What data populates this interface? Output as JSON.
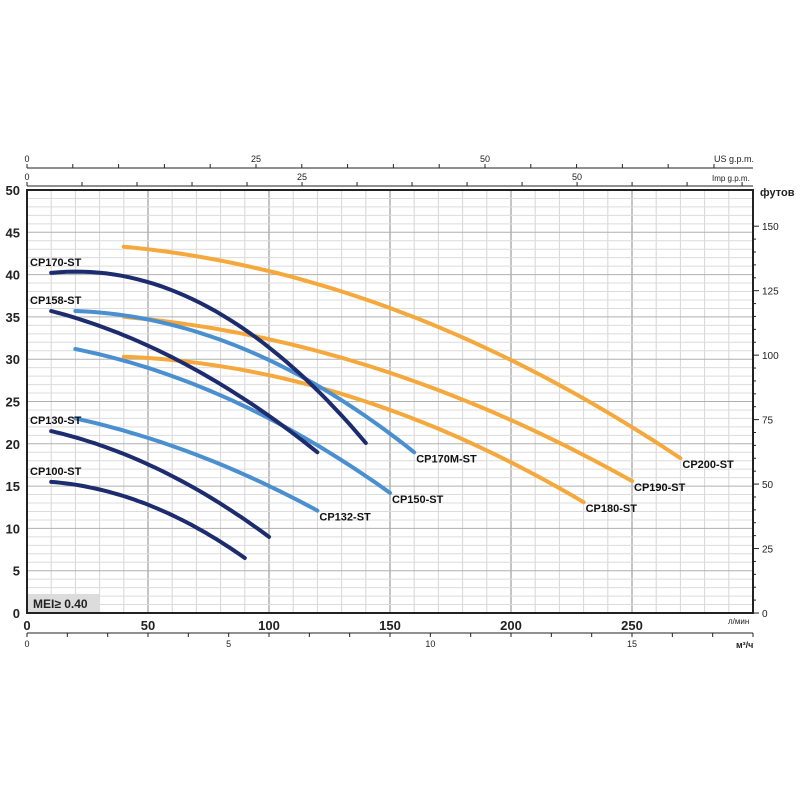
{
  "chart_data": {
    "type": "line",
    "xlabel": "л/мин",
    "ylabel": "",
    "y2label": "футов",
    "top_axis_1_label": "US g.p.m.",
    "top_axis_2_label": "Imp g.p.m.",
    "bottom_axis_2_label": "м³/ч",
    "xlim": [
      0,
      300
    ],
    "ylim": [
      0,
      50
    ],
    "x_ticks": [
      0,
      50,
      100,
      150,
      200,
      250
    ],
    "y_ticks": [
      0,
      5,
      10,
      15,
      20,
      25,
      30,
      35,
      40,
      45,
      50
    ],
    "y2_ticks": [
      0,
      25,
      50,
      75,
      100,
      125,
      150
    ],
    "us_gpm_ticks": [
      0,
      25,
      50
    ],
    "imp_gpm_ticks": [
      0,
      25,
      50
    ],
    "m3h_ticks": [
      0,
      5,
      10,
      15
    ],
    "grid": true,
    "annotation": "MEI≥ 0.40",
    "colors": {
      "orange": "#f5a83c",
      "light_blue": "#4a8fd0",
      "navy": "#1d2c6e"
    },
    "series": [
      {
        "name": "CP200-ST",
        "color": "orange",
        "points": [
          [
            40,
            43.3
          ],
          [
            200,
            29.9
          ],
          [
            270,
            18.3
          ]
        ]
      },
      {
        "name": "CP190-ST",
        "color": "orange",
        "points": [
          [
            40,
            35.0
          ],
          [
            200,
            22.8
          ],
          [
            250,
            15.6
          ]
        ]
      },
      {
        "name": "CP180-ST",
        "color": "orange",
        "points": [
          [
            40,
            30.3
          ],
          [
            150,
            24.0
          ],
          [
            230,
            13.1
          ]
        ]
      },
      {
        "name": "CP170M-ST",
        "color": "light_blue",
        "points": [
          [
            20,
            35.7
          ],
          [
            100,
            29.9
          ],
          [
            160,
            19.0
          ]
        ]
      },
      {
        "name": "CP150-ST",
        "color": "light_blue",
        "points": [
          [
            20,
            31.2
          ],
          [
            100,
            23.0
          ],
          [
            150,
            14.2
          ]
        ]
      },
      {
        "name": "CP132-ST",
        "color": "light_blue",
        "points": [
          [
            20,
            23.0
          ],
          [
            70,
            18.7
          ],
          [
            120,
            12.1
          ]
        ]
      },
      {
        "name": "CP170-ST",
        "color": "navy",
        "points": [
          [
            10,
            40.2
          ],
          [
            90,
            33.5
          ],
          [
            140,
            20.1
          ]
        ]
      },
      {
        "name": "CP158-ST",
        "color": "navy",
        "points": [
          [
            10,
            35.7
          ],
          [
            70,
            28.7
          ],
          [
            120,
            19.0
          ]
        ]
      },
      {
        "name": "CP130-ST",
        "color": "navy",
        "points": [
          [
            10,
            21.5
          ],
          [
            55,
            16.9
          ],
          [
            100,
            9.0
          ]
        ]
      },
      {
        "name": "CP100-ST",
        "color": "navy",
        "points": [
          [
            10,
            15.5
          ],
          [
            50,
            12.8
          ],
          [
            90,
            6.5
          ]
        ]
      }
    ]
  }
}
